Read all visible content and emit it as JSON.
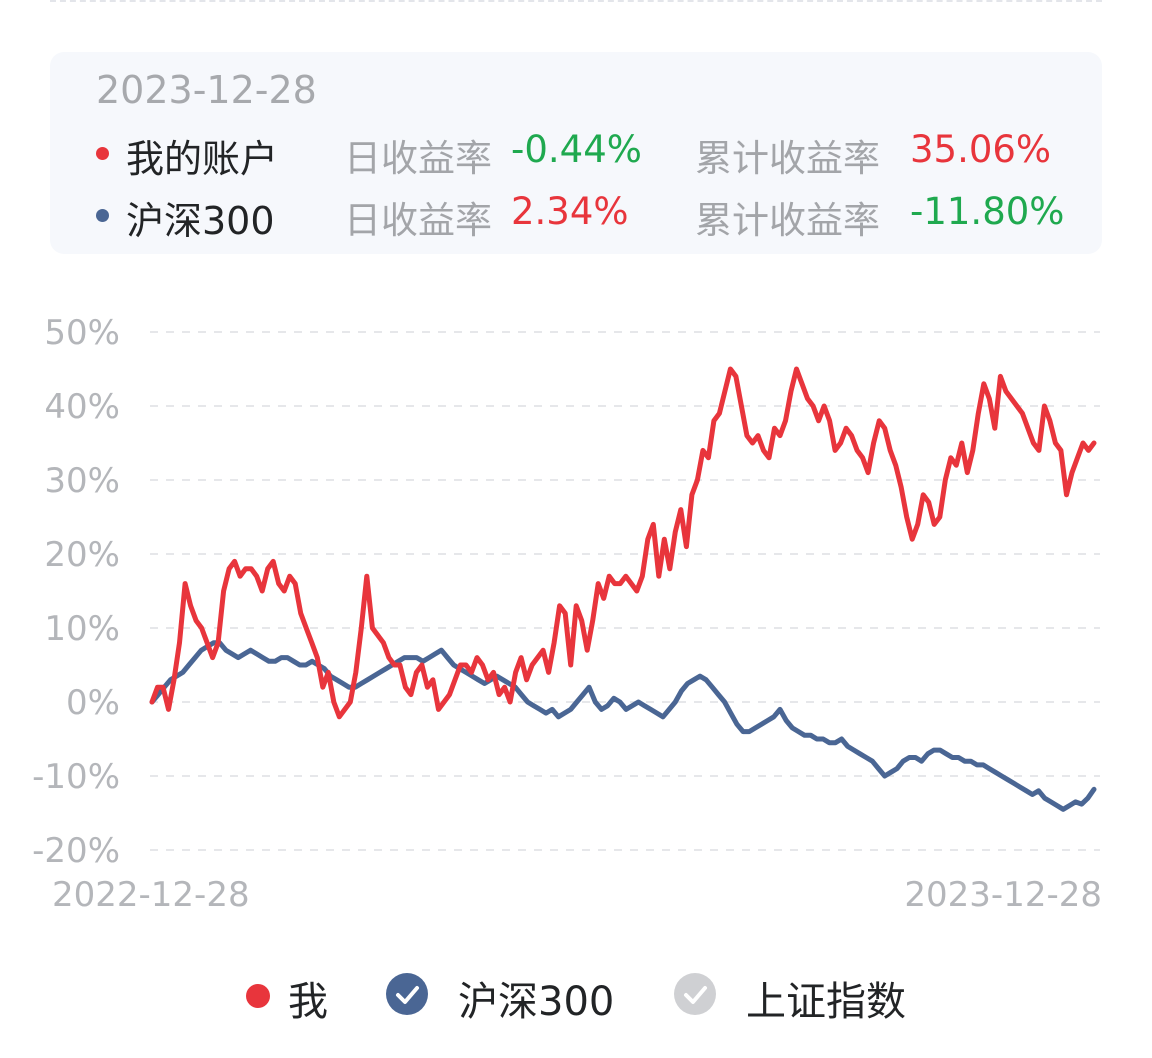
{
  "info_card": {
    "date": "2023-12-28",
    "rows": [
      {
        "name": "我的账户",
        "color": "#e8353c",
        "daily_label": "日收益率",
        "daily_value": "-0.44%",
        "daily_color": "#1fa94f",
        "cum_label": "累计收益率",
        "cum_value": "35.06%",
        "cum_color": "#e8353c"
      },
      {
        "name": "沪深300",
        "color": "#4a6694",
        "daily_label": "日收益率",
        "daily_value": "2.34%",
        "daily_color": "#e8353c",
        "cum_label": "累计收益率",
        "cum_value": "-11.80%",
        "cum_color": "#1fa94f"
      }
    ]
  },
  "chart_data": {
    "type": "line",
    "x_start": "2022-12-28",
    "x_end": "2023-12-28",
    "y_unit": "%",
    "ylim": [
      -20,
      50
    ],
    "yticks": [
      "50%",
      "40%",
      "30%",
      "20%",
      "10%",
      "0%",
      "-10%",
      "-20%"
    ],
    "xticks": [
      "2022-12-28",
      "2023-12-28"
    ],
    "grid": true,
    "series": [
      {
        "name": "我",
        "color": "#e8353c",
        "values": [
          0,
          2,
          2,
          -1,
          3,
          8,
          16,
          13,
          11,
          10,
          8,
          6,
          8,
          15,
          18,
          19,
          17,
          18,
          18,
          17,
          15,
          18,
          19,
          16,
          15,
          17,
          16,
          12,
          10,
          8,
          6,
          2,
          4,
          0,
          -2,
          -1,
          0,
          4,
          10,
          17,
          10,
          9,
          8,
          6,
          5,
          5,
          2,
          1,
          4,
          5,
          2,
          3,
          -1,
          0,
          1,
          3,
          5,
          5,
          4,
          6,
          5,
          3,
          4,
          1,
          2,
          0,
          4,
          6,
          3,
          5,
          6,
          7,
          4,
          8,
          13,
          12,
          5,
          13,
          11,
          7,
          11,
          16,
          14,
          17,
          16,
          16,
          17,
          16,
          15,
          17,
          22,
          24,
          17,
          22,
          18,
          23,
          26,
          21,
          28,
          30,
          34,
          33,
          38,
          39,
          42,
          45,
          44,
          40,
          36,
          35,
          36,
          34,
          33,
          37,
          36,
          38,
          42,
          45,
          43,
          41,
          40,
          38,
          40,
          38,
          34,
          35,
          37,
          36,
          34,
          33,
          31,
          35,
          38,
          37,
          34,
          32,
          29,
          25,
          22,
          24,
          28,
          27,
          24,
          25,
          30,
          33,
          32,
          35,
          31,
          34,
          39,
          43,
          41,
          37,
          44,
          42,
          41,
          40,
          39,
          37,
          35,
          34,
          40,
          38,
          35,
          34,
          28,
          31,
          33,
          35,
          34,
          35
        ]
      },
      {
        "name": "沪深300",
        "color": "#4a6694",
        "values": [
          0,
          1,
          2,
          3,
          3.5,
          4,
          5,
          6,
          7,
          7.5,
          8,
          8,
          7,
          6.5,
          6,
          6.5,
          7,
          6.5,
          6,
          5.5,
          5.5,
          6,
          6,
          5.5,
          5,
          5,
          5.5,
          5,
          4.5,
          3.5,
          3,
          2.5,
          2,
          2,
          2.5,
          3,
          3.5,
          4,
          4.5,
          5,
          5.5,
          6,
          6,
          6,
          5.5,
          6,
          6.5,
          7,
          6,
          5,
          4.5,
          4,
          3.5,
          3,
          2.5,
          3,
          3.5,
          3,
          2.5,
          2,
          1,
          0,
          -0.5,
          -1,
          -1.5,
          -1,
          -2,
          -1.5,
          -1,
          0,
          1,
          2,
          0,
          -1,
          -0.5,
          0.5,
          0,
          -1,
          -0.5,
          0,
          -0.5,
          -1,
          -1.5,
          -2,
          -1,
          0,
          1.5,
          2.5,
          3,
          3.5,
          3,
          2,
          1,
          0,
          -1.5,
          -3,
          -4,
          -4,
          -3.5,
          -3,
          -2.5,
          -2,
          -1,
          -2.5,
          -3.5,
          -4,
          -4.5,
          -4.5,
          -5,
          -5,
          -5.5,
          -5.5,
          -5,
          -6,
          -6.5,
          -7,
          -7.5,
          -8,
          -9,
          -10,
          -9.5,
          -9,
          -8,
          -7.5,
          -7.5,
          -8,
          -7,
          -6.5,
          -6.5,
          -7,
          -7.5,
          -7.5,
          -8,
          -8,
          -8.5,
          -8.5,
          -9,
          -9.5,
          -10,
          -10.5,
          -11,
          -11.5,
          -12,
          -12.5,
          -12,
          -13,
          -13.5,
          -14,
          -14.5,
          -14,
          -13.5,
          -13.8,
          -13,
          -11.8
        ]
      }
    ]
  },
  "legend": {
    "items": [
      {
        "label": "我",
        "color": "#e8353c",
        "kind": "dot"
      },
      {
        "label": "沪深300",
        "color": "#4a6694",
        "kind": "check"
      },
      {
        "label": "上证指数",
        "color": "#cfd0d3",
        "kind": "check"
      }
    ]
  }
}
